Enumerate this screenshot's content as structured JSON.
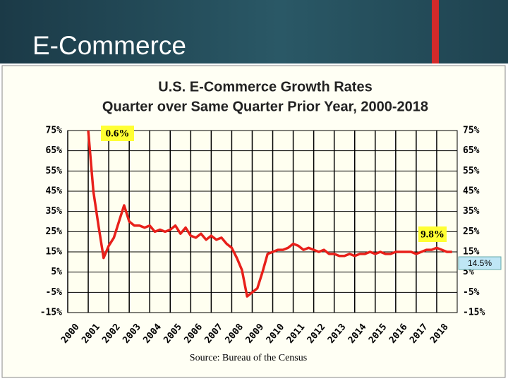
{
  "slide_title": "E-Commerce",
  "chart_data": {
    "type": "line",
    "title": "U.S. E-Commerce Growth Rates",
    "subtitle": "Quarter over Same Quarter Prior Year, 2000-2018",
    "source": "Source: Bureau of the Census",
    "annotations": [
      "0.6%",
      "9.8%",
      "14.5%"
    ],
    "xlim": [
      2000,
      2019
    ],
    "xticks": [
      2000,
      2001,
      2002,
      2003,
      2004,
      2005,
      2006,
      2007,
      2008,
      2009,
      2010,
      2011,
      2012,
      2013,
      2014,
      2015,
      2016,
      2017,
      2018
    ],
    "ylim": [
      -15,
      75
    ],
    "yticks": [
      {
        "value": 75,
        "label": "75%"
      },
      {
        "value": 65,
        "label": "65%"
      },
      {
        "value": 55,
        "label": "55%"
      },
      {
        "value": 45,
        "label": "45%"
      },
      {
        "value": 35,
        "label": "35%"
      },
      {
        "value": 25,
        "label": "25%"
      },
      {
        "value": 15,
        "label": "15%"
      },
      {
        "value": 5,
        "label": "5%"
      },
      {
        "value": -5,
        "label": "-5%"
      },
      {
        "value": -15,
        "label": "-15%"
      }
    ],
    "grid": true,
    "series": [
      {
        "color": "#e8201a",
        "x": [
          2001,
          2001.25,
          2001.5,
          2001.75,
          2002,
          2002.25,
          2002.5,
          2002.75,
          2003,
          2003.25,
          2003.5,
          2003.75,
          2004,
          2004.25,
          2004.5,
          2004.75,
          2005,
          2005.25,
          2005.5,
          2005.75,
          2006,
          2006.25,
          2006.5,
          2006.75,
          2007,
          2007.25,
          2007.5,
          2007.75,
          2008,
          2008.25,
          2008.5,
          2008.75,
          2009,
          2009.25,
          2009.5,
          2009.75,
          2010,
          2010.25,
          2010.5,
          2010.75,
          2011,
          2011.25,
          2011.5,
          2011.75,
          2012,
          2012.25,
          2012.5,
          2012.75,
          2013,
          2013.25,
          2013.5,
          2013.75,
          2014,
          2014.25,
          2014.5,
          2014.75,
          2015,
          2015.25,
          2015.5,
          2015.75,
          2016,
          2016.25,
          2016.5,
          2016.75,
          2017,
          2017.25,
          2017.5,
          2017.75,
          2018,
          2018.25,
          2018.5,
          2018.75
        ],
        "values": [
          75,
          45,
          28,
          12,
          18,
          22,
          30,
          38,
          30,
          28,
          28,
          27,
          28,
          25,
          26,
          25,
          26,
          28,
          24,
          27,
          23,
          22,
          24,
          21,
          23,
          21,
          22,
          19,
          17,
          12,
          6,
          -7,
          -5,
          -3,
          5,
          14,
          15,
          16,
          16,
          17,
          19,
          18,
          16,
          17,
          16,
          15,
          16,
          14,
          14,
          13,
          13,
          14,
          13,
          14,
          14,
          15,
          14,
          15,
          14,
          14,
          15,
          15,
          15,
          15,
          14,
          15,
          16,
          16,
          17,
          16,
          15,
          15
        ]
      }
    ]
  }
}
